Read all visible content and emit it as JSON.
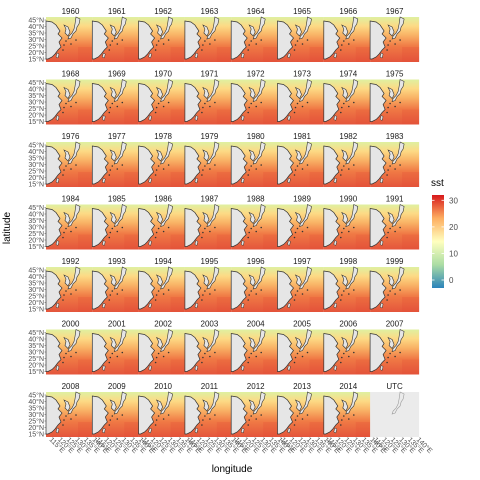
{
  "chart_data": {
    "type": "heatmap",
    "panels": [
      "1960",
      "1961",
      "1962",
      "1963",
      "1964",
      "1965",
      "1966",
      "1967",
      "1968",
      "1969",
      "1970",
      "1971",
      "1972",
      "1973",
      "1974",
      "1975",
      "1976",
      "1977",
      "1978",
      "1979",
      "1980",
      "1981",
      "1982",
      "1983",
      "1984",
      "1985",
      "1986",
      "1987",
      "1988",
      "1989",
      "1990",
      "1991",
      "1992",
      "1993",
      "1994",
      "1995",
      "1996",
      "1997",
      "1998",
      "1999",
      "2000",
      "2001",
      "2002",
      "2003",
      "2004",
      "2005",
      "2006",
      "2007",
      "2008",
      "2009",
      "2010",
      "2011",
      "2012",
      "2013",
      "2014",
      "UTC"
    ],
    "xlabel": "longitude",
    "ylabel": "latitude",
    "y_ticks": [
      "15°N",
      "20°N",
      "25°N",
      "30°N",
      "35°N",
      "40°N",
      "45°N"
    ],
    "x_ticks": [
      "115°E",
      "120°E",
      "125°E",
      "130°E",
      "135°E",
      "140°E"
    ],
    "legend": {
      "title": "sst",
      "ticks": [
        0,
        10,
        20,
        30
      ],
      "range": [
        -3,
        32
      ],
      "colors": [
        "#2b83ba",
        "#abdda4",
        "#ffffbf",
        "#fdae61",
        "#d7191c"
      ]
    },
    "empty_panels": [
      "UTC"
    ],
    "panel_bg": "#ebebeb"
  }
}
